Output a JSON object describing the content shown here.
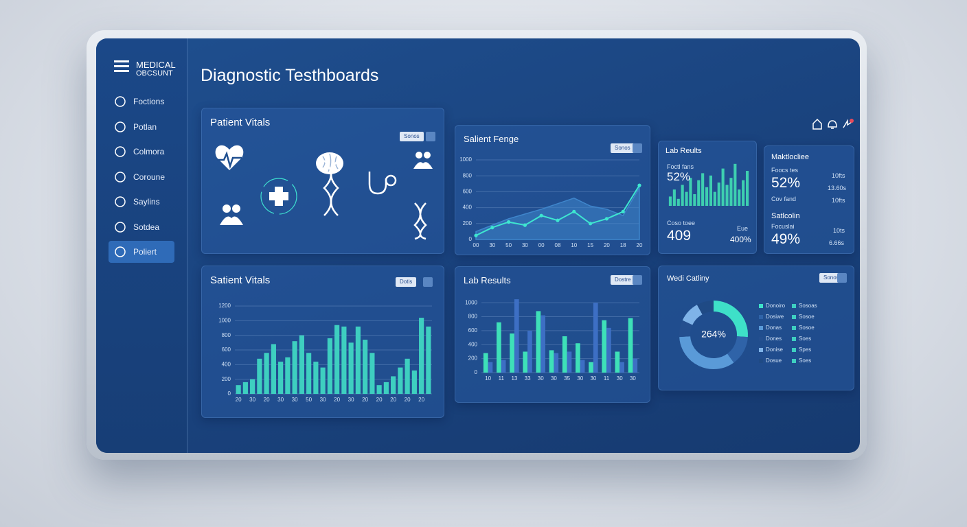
{
  "sidebar": {
    "brand": [
      "MEDICAL",
      "OBCSUNT"
    ],
    "items": [
      "Foctions",
      "Potlan",
      "Colmora",
      "Coroune",
      "Saylins",
      "Sotdea",
      "Poliert"
    ]
  },
  "header": {
    "title": "Diagnostic Testhboards"
  },
  "vitals_panel": {
    "title": "Patient Vitals",
    "button": "Sonos"
  },
  "lab_stats": {
    "items": [
      {
        "label": "Foctl fans",
        "value": "52%"
      },
      {
        "label": "Coso toee",
        "value": "409"
      },
      {
        "label": "Eue",
        "value": "400%"
      }
    ]
  },
  "medicine": {
    "title": "Maktlocliee",
    "rows": [
      {
        "label": "Foocs tes",
        "value": "52%",
        "side": [
          "10fts",
          "13.60s"
        ]
      },
      {
        "label": "Cov fand",
        "side": [
          "10fts"
        ]
      },
      {
        "label": "Satlcolin"
      },
      {
        "label": "Focuslai",
        "value": "49%",
        "side": [
          "10ts",
          "6.66s"
        ]
      }
    ]
  },
  "chart_data": [
    {
      "type": "line",
      "title": "Salient Fenge",
      "button": "Sonos",
      "categories": [
        "00",
        "30",
        "50",
        "30",
        "00",
        "08",
        "10",
        "15",
        "20",
        "18",
        "20"
      ],
      "series": [
        {
          "color": "#3f86cc",
          "area": true,
          "values": [
            100,
            180,
            260,
            320,
            380,
            450,
            520,
            420,
            380,
            300,
            650
          ]
        },
        {
          "color": "#3ee6d0",
          "markers": true,
          "values": [
            50,
            150,
            220,
            180,
            300,
            240,
            350,
            200,
            260,
            350,
            680
          ]
        }
      ],
      "ylim": [
        0,
        1000
      ],
      "yticks": [
        0,
        200,
        400,
        600,
        800,
        1000
      ],
      "grid": true
    },
    {
      "type": "bar",
      "title": "Lab Reults",
      "values": [
        20,
        35,
        15,
        45,
        30,
        60,
        25,
        55,
        70,
        40,
        65,
        30,
        50,
        80,
        45,
        60,
        90,
        35,
        55,
        75
      ],
      "color": "#3ecfb0",
      "ylim": [
        0,
        100
      ]
    },
    {
      "type": "bar",
      "title": "Satient Vitals",
      "button": "Dotis",
      "categories": [
        "20",
        null,
        "30",
        null,
        "20",
        null,
        "30",
        null,
        "30",
        null,
        "50",
        null,
        "30",
        null,
        "20",
        null,
        "30",
        null,
        "20",
        null,
        "20",
        null,
        "20",
        null,
        "20",
        null,
        "20",
        null
      ],
      "values": [
        120,
        160,
        200,
        480,
        560,
        680,
        440,
        500,
        720,
        800,
        560,
        440,
        360,
        760,
        940,
        920,
        700,
        920,
        740,
        560,
        120,
        160,
        240,
        360,
        480,
        320,
        1040,
        920
      ],
      "color": "#3ecfc0",
      "ylim": [
        0,
        1200
      ],
      "yticks": [
        0,
        200,
        400,
        600,
        800,
        1000,
        1200
      ],
      "grid": true
    },
    {
      "type": "bar",
      "title": "Lab Results",
      "button": "Dostre",
      "categories": [
        "10",
        "11",
        "13",
        "33",
        "30",
        "30",
        "35",
        "30",
        "30",
        "11",
        "30",
        "30"
      ],
      "series": [
        {
          "color": "#3ee0b8",
          "values": [
            280,
            720,
            560,
            300,
            880,
            320,
            520,
            420,
            150,
            750,
            300,
            780
          ]
        },
        {
          "color": "#3d6fc4",
          "values": [
            150,
            180,
            1050,
            600,
            820,
            280,
            300,
            180,
            1000,
            640,
            150,
            200
          ]
        }
      ],
      "ylim": [
        0,
        1100
      ],
      "yticks": [
        0,
        200,
        400,
        600,
        800,
        1000
      ],
      "grid": true
    },
    {
      "type": "pie",
      "title": "Wedi Catliny",
      "button": "Sonos",
      "center_label": "264%",
      "categories": [
        "Donoiro",
        "Dosiwe",
        "Donas",
        "Dones",
        "Donise",
        "Dosue"
      ],
      "values": [
        26,
        14,
        34,
        8,
        10,
        8
      ],
      "colors": [
        "#3ee0c8",
        "#2f63a8",
        "#5a9ad8",
        "#244f8f",
        "#7fb3e8",
        "#1f4a85"
      ],
      "legend_extra": [
        "Sosoas",
        "Sosoe",
        "Sosoe",
        "Soes",
        "Spes",
        "Soes"
      ],
      "legend_extra_color": "#3ecfc0"
    }
  ]
}
